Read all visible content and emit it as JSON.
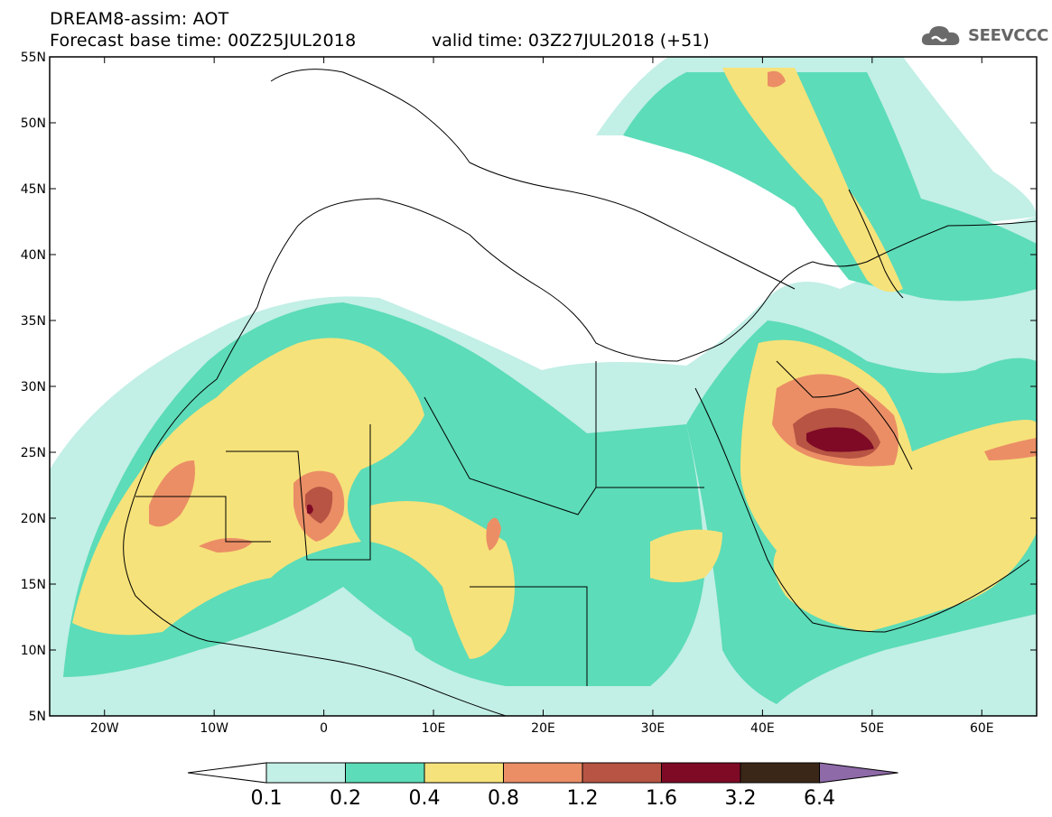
{
  "header": {
    "model_title": "DREAM8-assim: AOT",
    "base_time": "Forecast base time: 00Z25JUL2018",
    "valid_time": "valid time: 03Z27JUL2018 (+51)",
    "logo_text": "SEEVCCC",
    "logo_icon": "cloud-icon"
  },
  "map": {
    "lon_range": [
      -25,
      65
    ],
    "lat_range": [
      5,
      55
    ],
    "lat_ticks": [
      {
        "value": 55,
        "label": "55N"
      },
      {
        "value": 50,
        "label": "50N"
      },
      {
        "value": 45,
        "label": "45N"
      },
      {
        "value": 40,
        "label": "40N"
      },
      {
        "value": 35,
        "label": "35N"
      },
      {
        "value": 30,
        "label": "30N"
      },
      {
        "value": 25,
        "label": "25N"
      },
      {
        "value": 20,
        "label": "20N"
      },
      {
        "value": 15,
        "label": "15N"
      },
      {
        "value": 10,
        "label": "10N"
      },
      {
        "value": 5,
        "label": "5N"
      }
    ],
    "lon_ticks": [
      {
        "value": -20,
        "label": "20W"
      },
      {
        "value": -10,
        "label": "10W"
      },
      {
        "value": 0,
        "label": "0"
      },
      {
        "value": 10,
        "label": "10E"
      },
      {
        "value": 20,
        "label": "20E"
      },
      {
        "value": 30,
        "label": "30E"
      },
      {
        "value": 40,
        "label": "40E"
      },
      {
        "value": 50,
        "label": "50E"
      },
      {
        "value": 60,
        "label": "60E"
      }
    ]
  },
  "colorbar": {
    "labels": [
      "0.1",
      "0.2",
      "0.4",
      "0.8",
      "1.2",
      "1.6",
      "3.2",
      "6.4"
    ],
    "colors": [
      "#ffffff",
      "#c2efe6",
      "#5cdcb8",
      "#f6e27a",
      "#eb8e66",
      "#b75443",
      "#7e0a26",
      "#3b2718",
      "#8e6aa8"
    ]
  }
}
